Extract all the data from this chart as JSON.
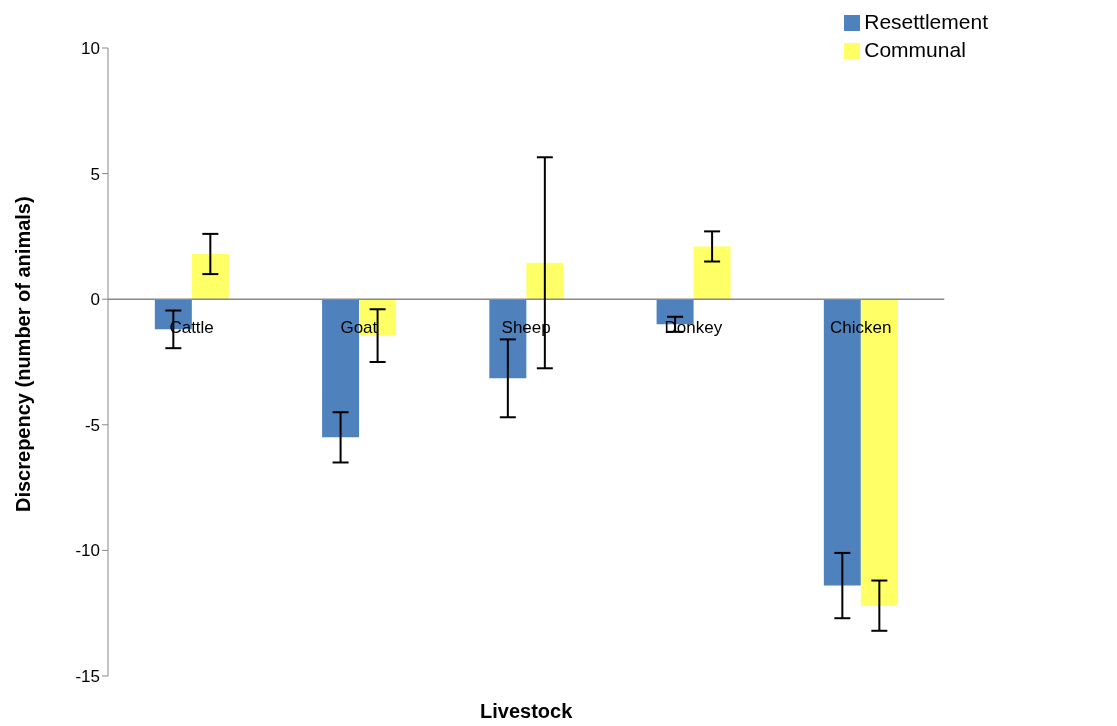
{
  "chart_data": {
    "type": "bar",
    "xlabel": "Livestock",
    "ylabel": "Discrepency (number of animals)",
    "categories": [
      "Cattle",
      "Goat",
      "Sheep",
      "Donkey",
      "Chicken"
    ],
    "series": [
      {
        "name": "Resettlement",
        "color": "#4f81bd",
        "values": [
          -1.2,
          -5.5,
          -3.15,
          -1.0,
          -11.4
        ],
        "errors": [
          0.75,
          1.0,
          1.55,
          0.3,
          1.3
        ]
      },
      {
        "name": "Communal",
        "color": "#ffff66",
        "values": [
          1.8,
          -1.45,
          1.45,
          2.1,
          -12.2
        ],
        "errors": [
          0.8,
          1.05,
          4.2,
          0.6,
          1.0
        ]
      }
    ],
    "ylim": [
      -15,
      10
    ],
    "yticks": [
      -15,
      -10,
      -5,
      0,
      5,
      10
    ],
    "legend": "top right"
  }
}
